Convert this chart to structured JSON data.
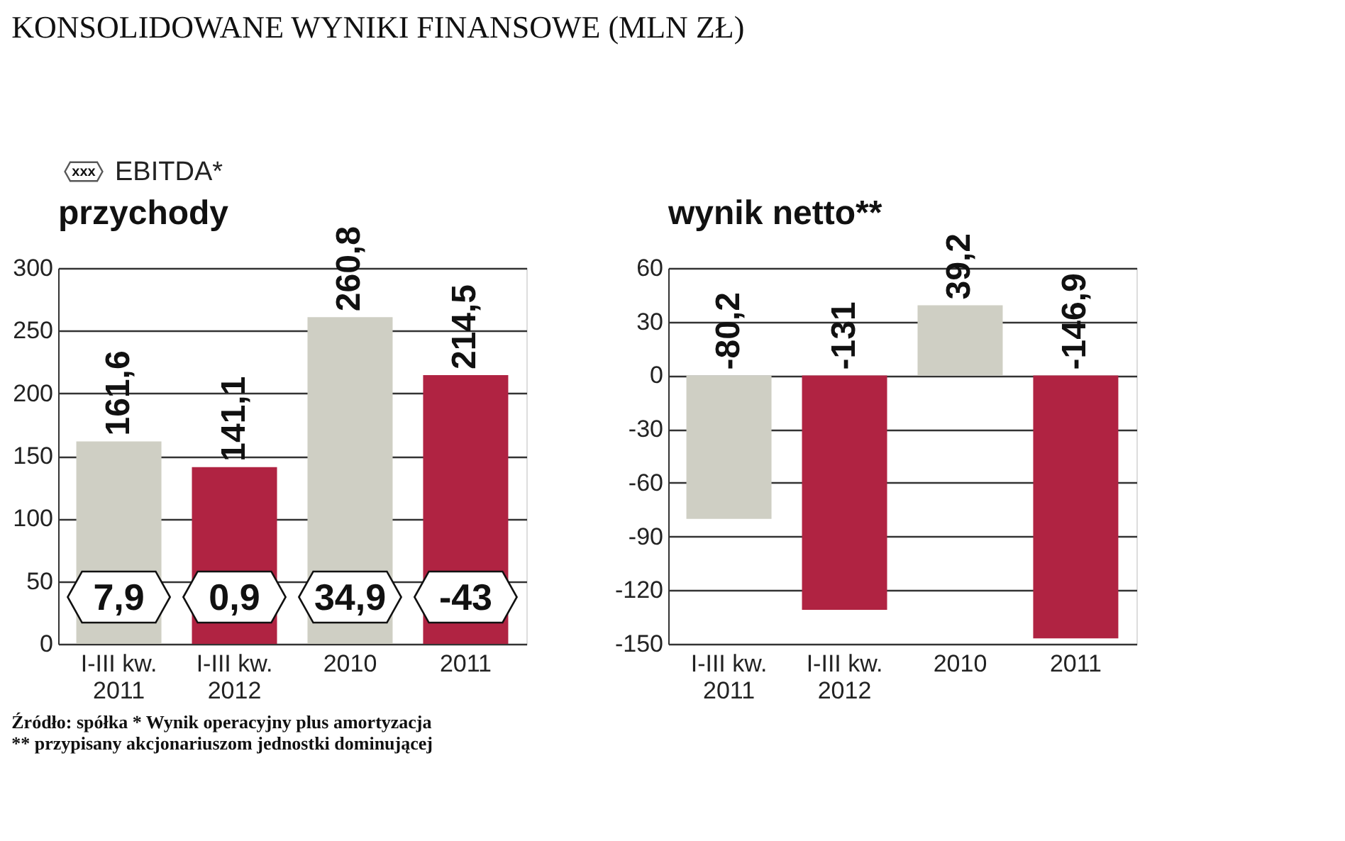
{
  "chart_data": [
    {
      "type": "bar",
      "title": "KONSOLIDOWANE WYNIKI FINANSOWE (MLN ZŁ)",
      "subtitle": "przychody",
      "legend_title": "EBITDA*",
      "categories": [
        "I-III kw. 2011",
        "I-III kw. 2012",
        "2010",
        "2011"
      ],
      "values": [
        161.6,
        141.1,
        260.8,
        214.5
      ],
      "colors": [
        "#cfcfc4",
        "#b02342",
        "#cfcfc4",
        "#b02342"
      ],
      "value_labels": [
        "161,6",
        "141,1",
        "260,8",
        "214,5"
      ],
      "ylim": [
        0,
        300
      ],
      "yticks": [
        0,
        50,
        100,
        150,
        200,
        250,
        300
      ],
      "grid": "y",
      "annotations": [
        "xxx",
        "7,9",
        "0,9",
        "34,9",
        "-43",
        "Źródło: spółka * Wynik operacyjny plus amortyzacja",
        "** przypisany akcjonariuszom jednostki dominującej"
      ]
    },
    {
      "type": "bar",
      "subtitle": "wynik netto**",
      "categories": [
        "I-III kw. 2011",
        "I-III kw. 2012",
        "2010",
        "2011"
      ],
      "values": [
        -80.2,
        -131,
        39.2,
        -146.9
      ],
      "colors": [
        "#cfcfc4",
        "#b02342",
        "#cfcfc4",
        "#b02342"
      ],
      "value_labels": [
        "-80,2",
        "-131",
        "39,2",
        "-146,9"
      ],
      "ylim": [
        -150,
        60
      ],
      "yticks": [
        -150,
        -120,
        -90,
        -60,
        -30,
        0,
        30,
        60
      ],
      "grid": "y"
    }
  ]
}
